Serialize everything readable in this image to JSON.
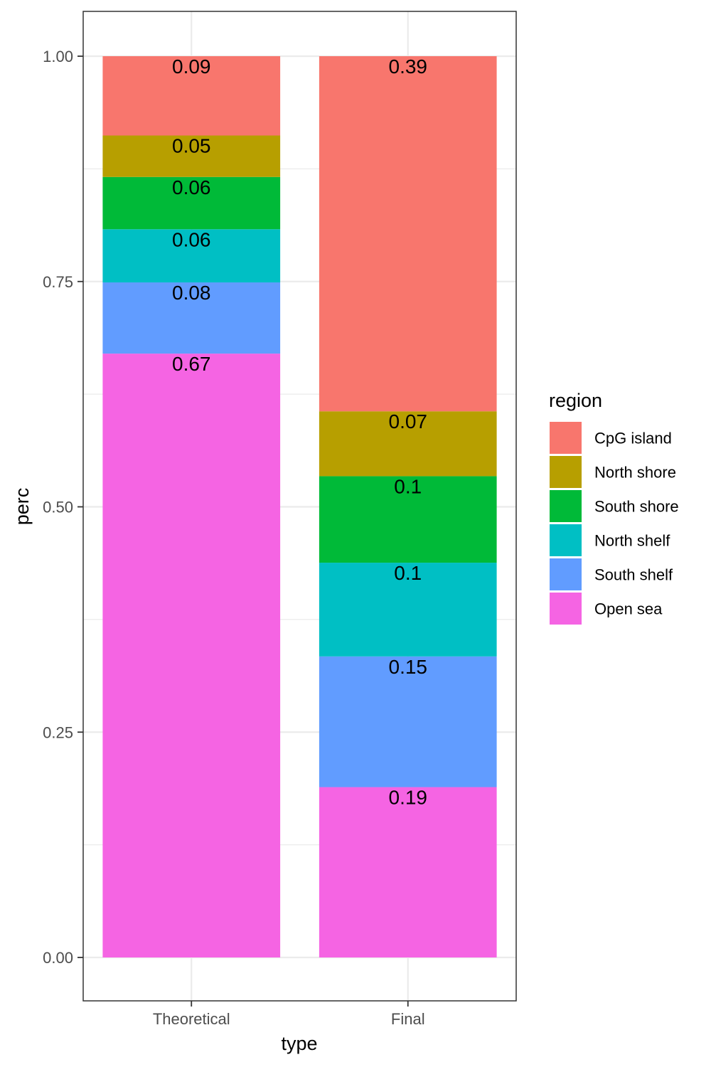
{
  "chart_data": {
    "type": "bar",
    "stacked": true,
    "xlabel": "type",
    "ylabel": "perc",
    "ylim": [
      -0.05,
      1.05
    ],
    "y_ticks": [
      "0.00",
      "0.25",
      "0.50",
      "0.75",
      "1.00"
    ],
    "y_tick_values": [
      0,
      0.25,
      0.5,
      0.75,
      1.0
    ],
    "categories": [
      "Theoretical",
      "Final"
    ],
    "grid": true,
    "legend_title": "region",
    "legend_position": "right",
    "series": [
      {
        "name": "CpG island",
        "color": "#F8766D",
        "values": [
          0.088,
          0.394
        ],
        "labels": [
          "0.09",
          "0.39"
        ]
      },
      {
        "name": "North shore",
        "color": "#B79F00",
        "values": [
          0.046,
          0.072
        ],
        "labels": [
          "0.05",
          "0.07"
        ]
      },
      {
        "name": "South shore",
        "color": "#00BA38",
        "values": [
          0.058,
          0.096
        ],
        "labels": [
          "0.06",
          "0.1"
        ]
      },
      {
        "name": "North shelf",
        "color": "#00BFC4",
        "values": [
          0.059,
          0.104
        ],
        "labels": [
          "0.06",
          "0.1"
        ]
      },
      {
        "name": "South shelf",
        "color": "#619CFF",
        "values": [
          0.079,
          0.145
        ],
        "labels": [
          "0.08",
          "0.15"
        ]
      },
      {
        "name": "Open sea",
        "color": "#F564E3",
        "values": [
          0.67,
          0.189
        ],
        "labels": [
          "0.67",
          "0.19"
        ]
      }
    ]
  }
}
